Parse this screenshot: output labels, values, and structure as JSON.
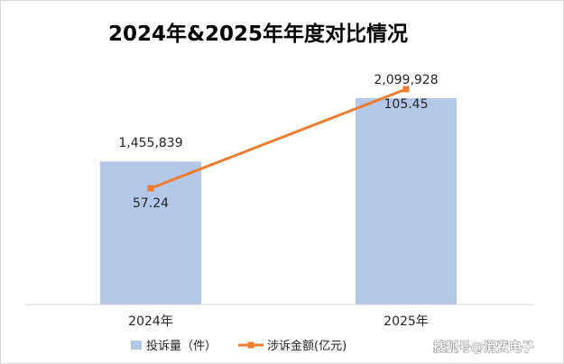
{
  "chart_data": {
    "type": "bar",
    "title": "2024年&2025年年度对比情况",
    "categories": [
      "2024年",
      "2025年"
    ],
    "series": [
      {
        "name": "投诉量（件）",
        "type": "bar",
        "axis": "left",
        "values": [
          1455839,
          2099928
        ],
        "labels": [
          "1,455,839",
          "2,099,928"
        ],
        "color": "#b4c7e7"
      },
      {
        "name": "涉诉金额(亿元)",
        "type": "line",
        "axis": "right",
        "values": [
          57.24,
          105.45
        ],
        "labels": [
          "57.24",
          "105.45"
        ],
        "color": "#ed7d31"
      }
    ],
    "legend_position": "bottom",
    "grid": false
  },
  "watermark": "搜狐号@消费电子"
}
